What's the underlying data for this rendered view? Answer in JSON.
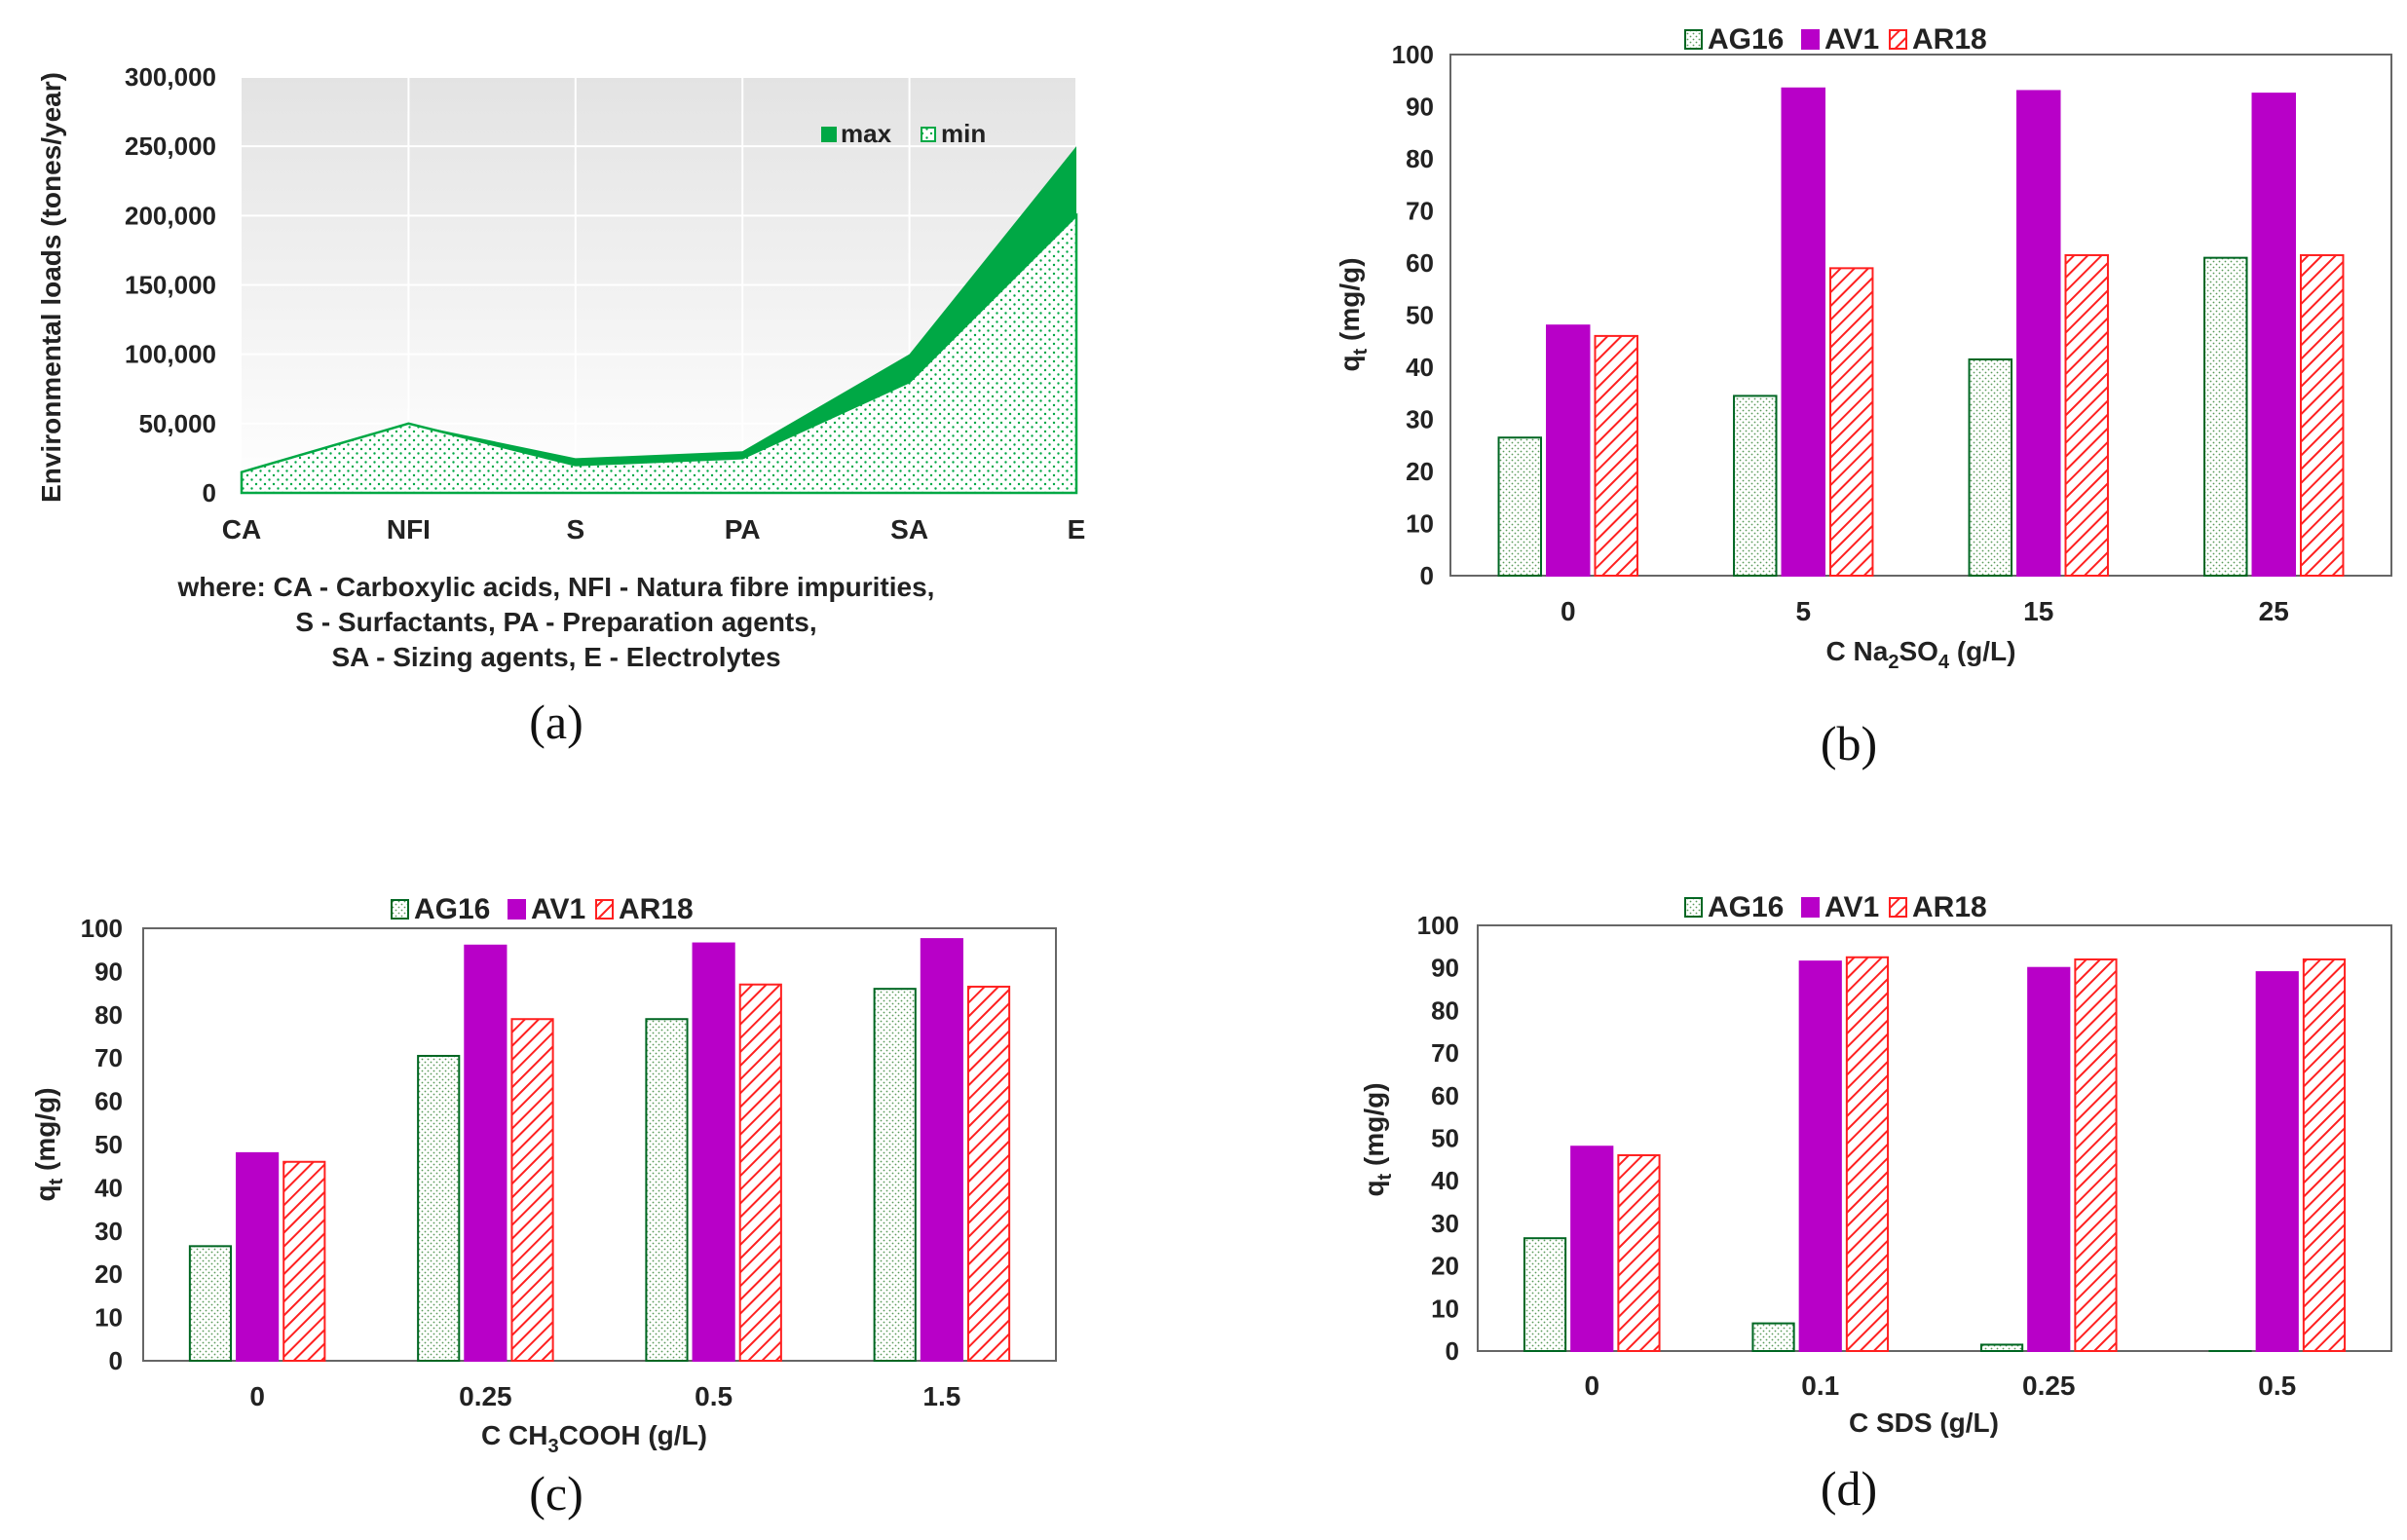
{
  "colors": {
    "green": "#00a845",
    "green_dark": "#006622",
    "purple": "#b800c8",
    "red": "#ff2020",
    "axis": "#666666",
    "plot_bg_top": "#e6e6e6",
    "plot_bg_bottom": "#ffffff"
  },
  "chart_data": [
    {
      "type": "area",
      "panel": "(a)",
      "categories": [
        "CA",
        "NFI",
        "S",
        "PA",
        "SA",
        "E"
      ],
      "series": [
        {
          "name": "max",
          "values": [
            15000,
            50000,
            25000,
            30000,
            100000,
            250000
          ]
        },
        {
          "name": "min",
          "values": [
            15000,
            50000,
            20000,
            25000,
            80000,
            200000
          ]
        }
      ],
      "ylabel": "Environmental loads (tones/year)",
      "ylim": [
        0,
        300000
      ],
      "yticks": [
        "0",
        "50,000",
        "100,000",
        "150,000",
        "200,000",
        "250,000",
        "300,000"
      ],
      "legend": "top-right",
      "note": [
        "where: CA - Carboxylic acids, NFI - Natura fibre impurities,",
        "S -   Surfactants, PA - Preparation agents,",
        "SA - Sizing agents, E - Electrolytes"
      ]
    },
    {
      "type": "bar",
      "panel": "(b)",
      "categories": [
        "0",
        "5",
        "15",
        "25"
      ],
      "series": [
        {
          "name": "AG16",
          "values": [
            26.5,
            34.5,
            41.5,
            61
          ]
        },
        {
          "name": "AV1",
          "values": [
            48,
            93.5,
            93,
            92.5
          ]
        },
        {
          "name": "AR18",
          "values": [
            46,
            59,
            61.5,
            61.5
          ]
        }
      ],
      "xlabel_main": "C Na",
      "xlabel_sub1": "2",
      "xlabel_mid": "SO",
      "xlabel_sub2": "4",
      "xlabel_end": " (g/L)",
      "ylabel_main": "q",
      "ylabel_sub": "t",
      "ylabel_unit": " (mg/g)",
      "ylim": [
        0,
        100
      ],
      "yticks": [
        "0",
        "10",
        "20",
        "30",
        "40",
        "50",
        "60",
        "70",
        "80",
        "90",
        "100"
      ],
      "legend": "top"
    },
    {
      "type": "bar",
      "panel": "(c)",
      "categories": [
        "0",
        "0.25",
        "0.5",
        "1.5"
      ],
      "series": [
        {
          "name": "AG16",
          "values": [
            26.5,
            70.5,
            79,
            86
          ]
        },
        {
          "name": "AV1",
          "values": [
            48,
            96,
            96.5,
            97.5
          ]
        },
        {
          "name": "AR18",
          "values": [
            46,
            79,
            87,
            86.5
          ]
        }
      ],
      "xlabel_main": "C CH",
      "xlabel_sub1": "3",
      "xlabel_mid": "COOH (g/L)",
      "ylabel_main": "q",
      "ylabel_sub": "t",
      "ylabel_unit": " (mg/g)",
      "ylim": [
        0,
        100
      ],
      "yticks": [
        "0",
        "10",
        "20",
        "30",
        "40",
        "50",
        "60",
        "70",
        "80",
        "90",
        "100"
      ],
      "legend": "top"
    },
    {
      "type": "bar",
      "panel": "(d)",
      "categories": [
        "0",
        "0.1",
        "0.25",
        "0.5"
      ],
      "series": [
        {
          "name": "AG16",
          "values": [
            26.5,
            6.5,
            1.5,
            0
          ]
        },
        {
          "name": "AV1",
          "values": [
            48,
            91.5,
            90,
            89
          ]
        },
        {
          "name": "AR18",
          "values": [
            46,
            92.5,
            92,
            92
          ]
        }
      ],
      "xlabel_main": "C SDS (g/L)",
      "ylabel_main": "q",
      "ylabel_sub": "t",
      "ylabel_unit": " (mg/g)",
      "ylim": [
        0,
        100
      ],
      "yticks": [
        "0",
        "10",
        "20",
        "30",
        "40",
        "50",
        "60",
        "70",
        "80",
        "90",
        "100"
      ],
      "legend": "top"
    }
  ]
}
